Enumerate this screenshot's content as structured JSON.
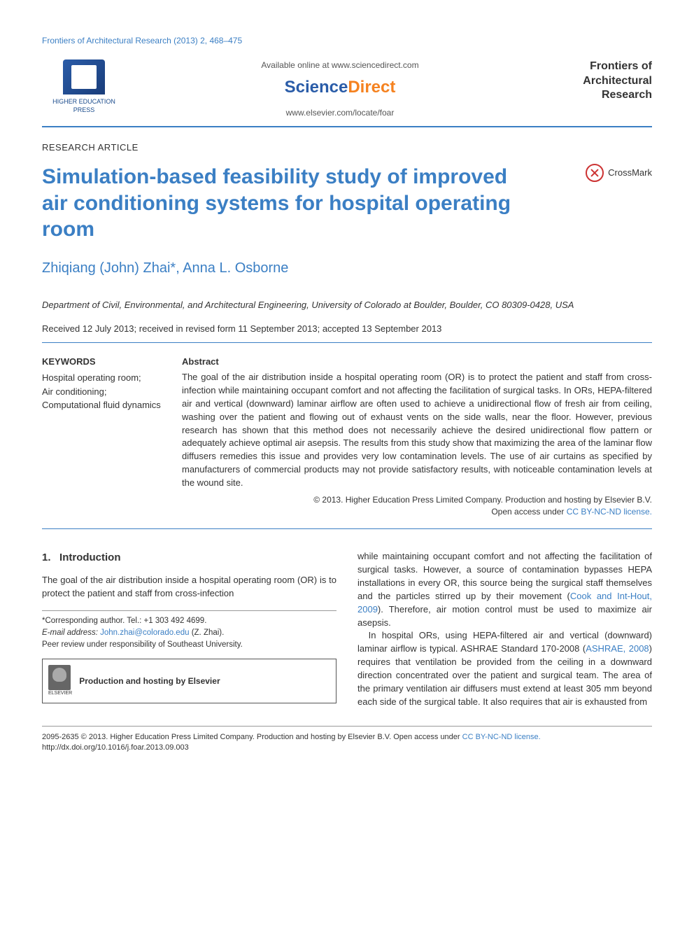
{
  "colors": {
    "link_blue": "#3b7fc4",
    "orange": "#f58220",
    "text": "#333333",
    "bg": "#ffffff"
  },
  "typography": {
    "body_fontsize": 13,
    "title_fontsize": 30,
    "authors_fontsize": 20,
    "heading_fontsize": 15
  },
  "header": {
    "journal_ref": "Frontiers of Architectural Research (2013) 2, 468–475",
    "publisher_label": "HIGHER EDUCATION PRESS",
    "available_text": "Available online at www.sciencedirect.com",
    "sciencedirect_part1": "Science",
    "sciencedirect_part2": "Direct",
    "journal_url": "www.elsevier.com/locate/foar",
    "journal_name_l1": "Frontiers of",
    "journal_name_l2": "Architectural",
    "journal_name_l3": "Research"
  },
  "article": {
    "type": "RESEARCH ARTICLE",
    "title": "Simulation-based feasibility study of improved air conditioning systems for hospital operating room",
    "crossmark_label": "CrossMark",
    "authors": "Zhiqiang (John) Zhai*, Anna L. Osborne",
    "affiliation": "Department of Civil, Environmental, and Architectural Engineering, University of Colorado at Boulder, Boulder, CO 80309-0428, USA",
    "dates": "Received 12 July 2013; received in revised form 11 September 2013; accepted 13 September 2013"
  },
  "keywords": {
    "heading": "KEYWORDS",
    "items": "Hospital operating room;\nAir conditioning;\nComputational fluid dynamics"
  },
  "abstract": {
    "heading": "Abstract",
    "text": "The goal of the air distribution inside a hospital operating room (OR) is to protect the patient and staff from cross-infection while maintaining occupant comfort and not affecting the facilitation of surgical tasks. In ORs, HEPA-filtered air and vertical (downward) laminar airflow are often used to achieve a unidirectional flow of fresh air from ceiling, washing over the patient and flowing out of exhaust vents on the side walls, near the floor. However, previous research has shown that this method does not necessarily achieve the desired unidirectional flow pattern or adequately achieve optimal air asepsis. The results from this study show that maximizing the area of the laminar flow diffusers remedies this issue and provides very low contamination levels. The use of air curtains as specified by manufacturers of commercial products may not provide satisfactory results, with noticeable contamination levels at the wound site.",
    "copyright": "© 2013. Higher Education Press Limited Company. Production and hosting by Elsevier B.V.",
    "license_prefix": "Open access under ",
    "license_link": "CC BY-NC-ND license."
  },
  "body": {
    "section_number": "1.",
    "section_title": "Introduction",
    "col1_p1": "The goal of the air distribution inside a hospital operating room (OR) is to protect the patient and staff from cross-infection",
    "col2_p1": "while maintaining occupant comfort and not affecting the facilitation of surgical tasks. However, a source of contamination bypasses HEPA installations in every OR, this source being the surgical staff themselves and the particles stirred up by their movement (Cook and Int-Hout, 2009). Therefore, air motion control must be used to maximize air asepsis.",
    "col2_p2": "In hospital ORs, using HEPA-filtered air and vertical (downward) laminar airflow is typical. ASHRAE Standard 170-2008 (ASHRAE, 2008) requires that ventilation be provided from the ceiling in a downward direction concentrated over the patient and surgical team. The area of the primary ventilation air diffusers must extend at least 305 mm beyond each side of the surgical table. It also requires that air is exhausted from",
    "ref1": "Cook and Int-Hout, 2009",
    "ref2": "ASHRAE, 2008"
  },
  "footnote": {
    "corresponding": "*Corresponding author. Tel.: +1 303 492 4699.",
    "email_label": "E-mail address: ",
    "email": "John.zhai@colorado.edu",
    "email_suffix": " (Z. Zhai).",
    "peer_review": "Peer review under responsibility of Southeast University.",
    "hosting_label": "Production and hosting by Elsevier",
    "elsevier_label": "ELSEVIER"
  },
  "footer": {
    "line1": "2095-2635 © 2013. Higher Education Press Limited Company. Production and hosting by Elsevier B.V. ",
    "license_prefix": "Open access under ",
    "license_link": "CC BY-NC-ND license.",
    "doi": "http://dx.doi.org/10.1016/j.foar.2013.09.003"
  }
}
